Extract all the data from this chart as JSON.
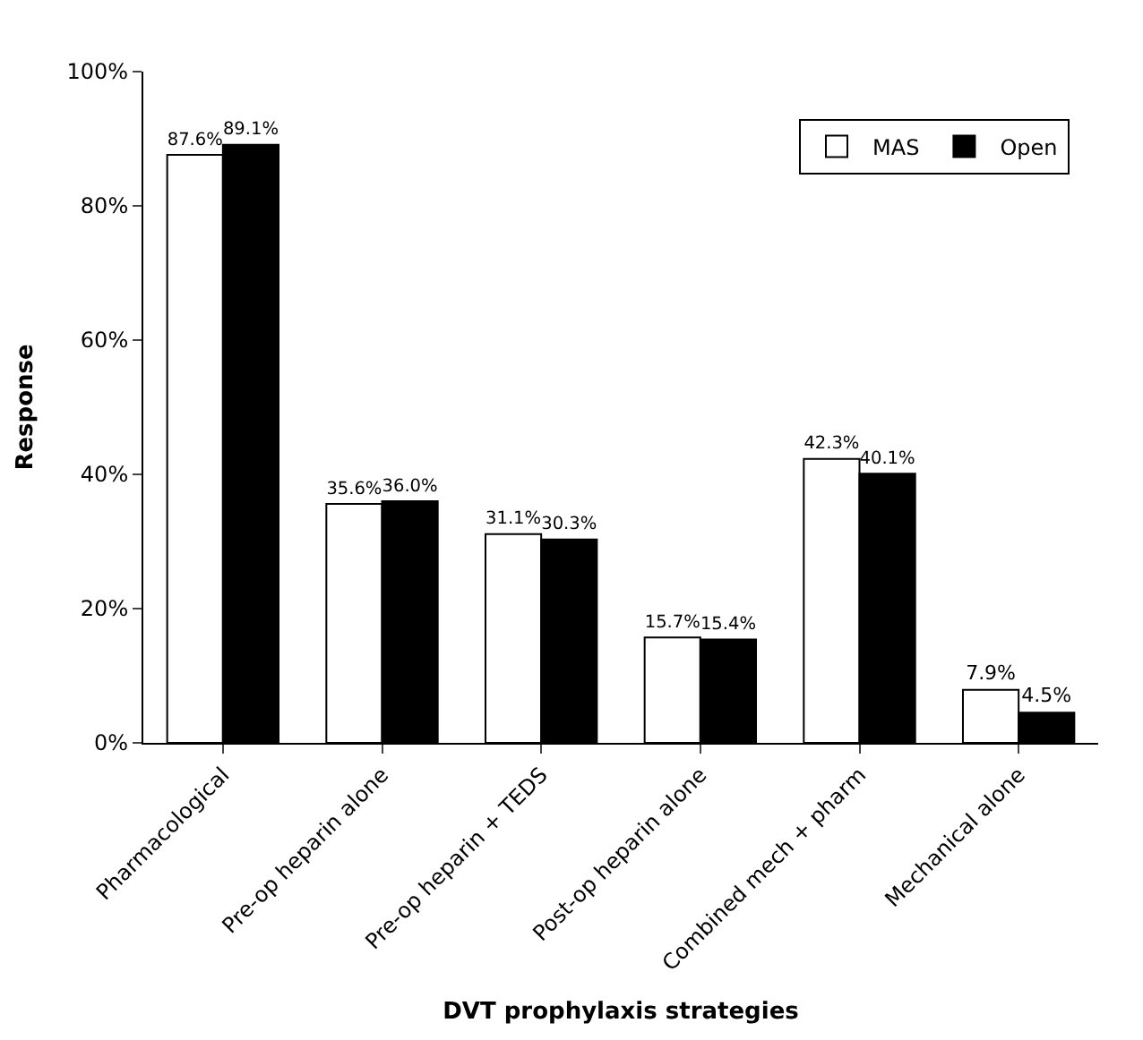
{
  "chart_data": {
    "type": "bar",
    "xlabel": "DVT prophylaxis strategies",
    "ylabel": "Response",
    "categories": [
      "Pharmacological",
      "Pre-op heparin alone",
      "Pre-op heparin + TEDS",
      "Post-op heparin alone",
      "Combined mech + pharm",
      "Mechanical alone"
    ],
    "series": [
      {
        "name": "MAS",
        "color": "#ffffff",
        "values": [
          87.6,
          35.6,
          31.1,
          15.7,
          42.3,
          7.9
        ],
        "value_labels": [
          "87.6%",
          "35.6%",
          "31.1%",
          "15.7%",
          "42.3%",
          "7.9%"
        ]
      },
      {
        "name": "Open",
        "color": "#000000",
        "values": [
          89.1,
          36.0,
          30.3,
          15.4,
          40.1,
          4.5
        ],
        "value_labels": [
          "89.1%",
          "36.0%",
          "30.3%",
          "15.4%",
          "40.1%",
          "4.5%"
        ]
      }
    ],
    "ylim": [
      0,
      100
    ],
    "yticks": [
      {
        "value": 0,
        "label": "0%"
      },
      {
        "value": 20,
        "label": "20%"
      },
      {
        "value": 40,
        "label": "40%"
      },
      {
        "value": 60,
        "label": "60%"
      },
      {
        "value": 80,
        "label": "80%"
      },
      {
        "value": 100,
        "label": "100%"
      }
    ],
    "legend": "top right"
  }
}
